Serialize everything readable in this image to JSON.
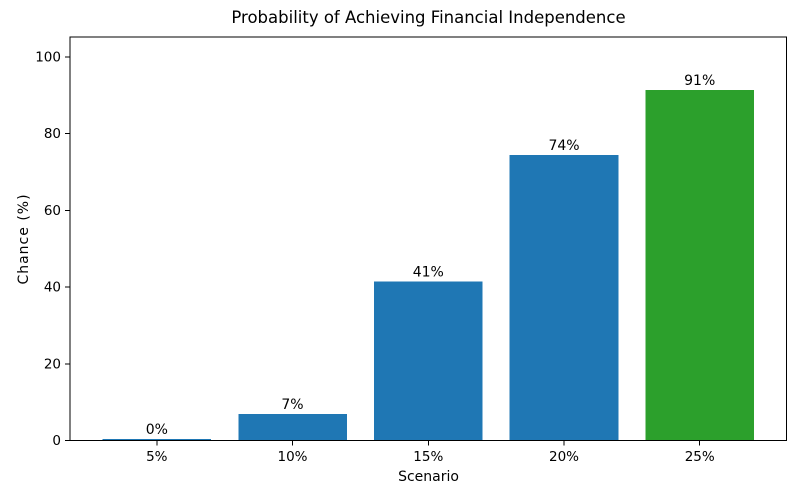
{
  "chart_data": {
    "type": "bar",
    "title": "Probability of Achieving Financial Independence",
    "xlabel": "Scenario",
    "ylabel": "Chance (%)",
    "categories": [
      "5%",
      "10%",
      "15%",
      "20%",
      "25%"
    ],
    "values": [
      0.4,
      6.9,
      41.4,
      74.4,
      91.4
    ],
    "bar_labels": [
      "0%",
      "7%",
      "41%",
      "74%",
      "91%"
    ],
    "bar_colors": [
      "#1f77b4",
      "#1f77b4",
      "#1f77b4",
      "#1f77b4",
      "#2ca02c"
    ],
    "yticks": [
      0,
      20,
      40,
      60,
      80,
      100
    ],
    "ylim": [
      0,
      105.2
    ],
    "grid": false,
    "legend_position": "none",
    "axis_color": "#000000",
    "background_color": "#ffffff"
  }
}
